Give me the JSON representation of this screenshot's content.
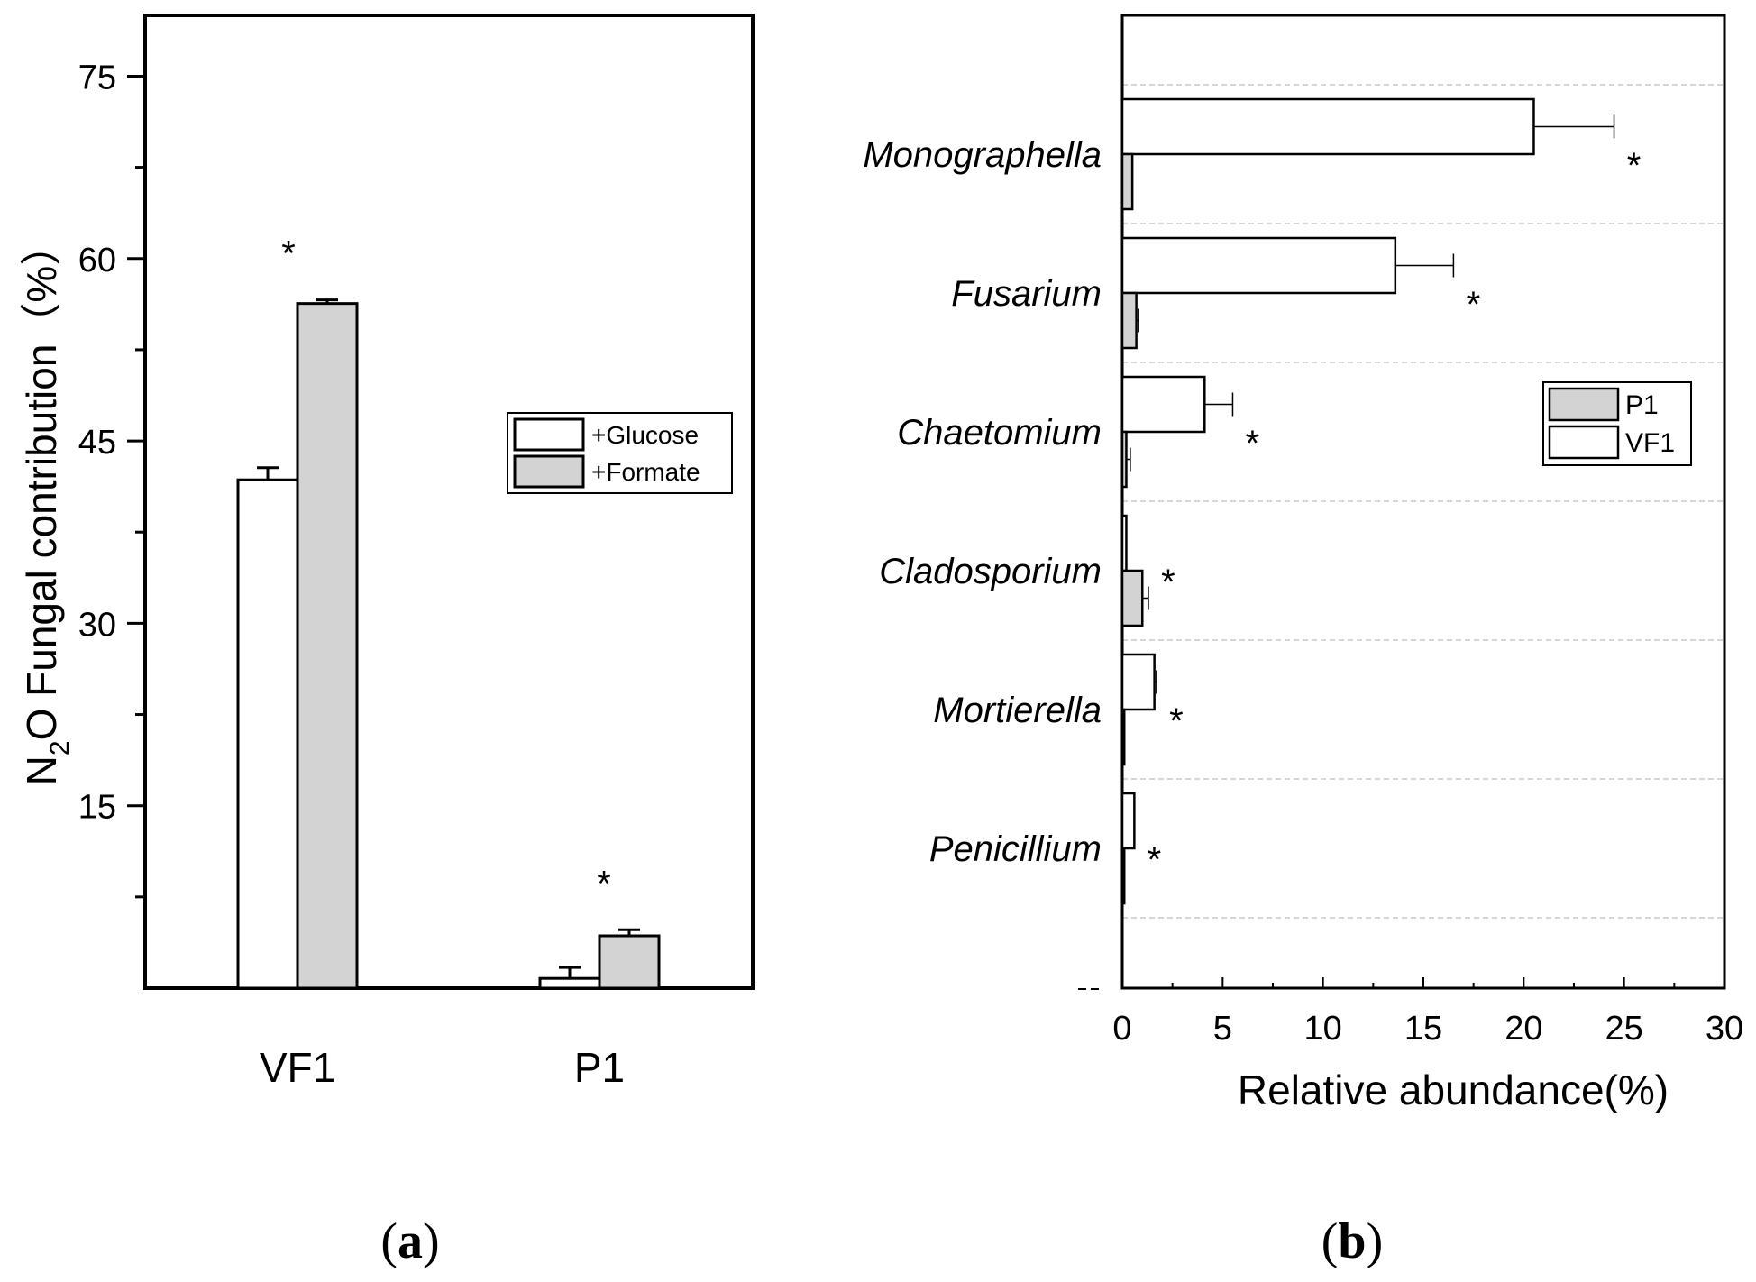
{
  "chart_data": [
    {
      "panel_label": "(a)",
      "type": "bar",
      "orientation": "vertical",
      "ylabel_main": "N",
      "ylabel_sub": "2",
      "ylabel_rest": "O Fungal contribution（%）",
      "ylim": [
        0,
        80
      ],
      "yticks": [
        15,
        30,
        45,
        60,
        75
      ],
      "ytick_labels": [
        "15",
        "30",
        "45",
        "60",
        "75"
      ],
      "categories": [
        "VF1",
        "P1"
      ],
      "series": [
        {
          "name": "+Glucose",
          "color": "#ffffff",
          "values": [
            41.8,
            0.8
          ],
          "errors": [
            1.0,
            0.9
          ]
        },
        {
          "name": "+Formate",
          "color": "#d3d3d3",
          "values": [
            56.3,
            4.3
          ],
          "errors": [
            0.3,
            0.5
          ]
        }
      ],
      "significance": [
        {
          "category": "VF1",
          "label": "*"
        },
        {
          "category": "P1",
          "label": "*"
        }
      ],
      "legend_position": "center-right"
    },
    {
      "panel_label": "(b)",
      "type": "bar",
      "orientation": "horizontal",
      "xlabel": "Relative abundance(%)",
      "xlim": [
        0,
        30
      ],
      "xticks": [
        0,
        5,
        10,
        15,
        20,
        25,
        30
      ],
      "xtick_labels": [
        "0",
        "5",
        "10",
        "15",
        "20",
        "25",
        "30"
      ],
      "categories": [
        "Monographella",
        "Fusarium",
        "Chaetomium",
        "Cladosporium",
        "Mortierella",
        "Penicillium"
      ],
      "series": [
        {
          "name": "P1",
          "color": "#d3d3d3",
          "values": [
            0.5,
            0.7,
            0.2,
            1.0,
            0.1,
            0.1
          ],
          "errors": [
            0,
            0.1,
            0.2,
            0.3,
            0,
            0
          ]
        },
        {
          "name": "VF1",
          "color": "#ffffff",
          "values": [
            20.5,
            13.6,
            4.1,
            0.2,
            1.6,
            0.6
          ],
          "errors": [
            4.0,
            2.9,
            1.4,
            0,
            0.1,
            0
          ]
        }
      ],
      "significance": [
        {
          "category": "Monographella",
          "label": "*"
        },
        {
          "category": "Fusarium",
          "label": "*"
        },
        {
          "category": "Chaetomium",
          "label": "*"
        },
        {
          "category": "Cladosporium",
          "label": "*"
        },
        {
          "category": "Mortierella",
          "label": "*"
        },
        {
          "category": "Penicillium",
          "label": "*"
        }
      ],
      "legend_position": "center-right"
    }
  ]
}
